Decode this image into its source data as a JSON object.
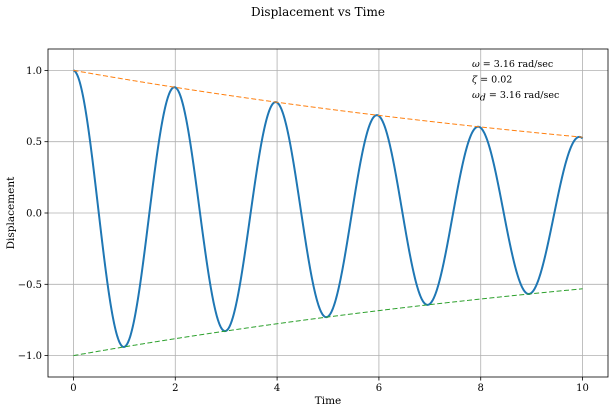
{
  "chart_data": {
    "type": "line",
    "title": "Displacement vs Time",
    "xlabel": "Time",
    "ylabel": "Displacement",
    "xlim": [
      -0.5,
      10.5
    ],
    "ylim": [
      -1.15,
      1.15
    ],
    "xticks": [
      0,
      2,
      4,
      6,
      8,
      10
    ],
    "xtick_labels": [
      "0",
      "2",
      "4",
      "6",
      "8",
      "10"
    ],
    "yticks": [
      -1.0,
      -0.5,
      0.0,
      0.5,
      1.0
    ],
    "ytick_labels": [
      "−1.0",
      "−0.5",
      "0.0",
      "0.5",
      "1.0"
    ],
    "grid": true,
    "parameters": {
      "omega": 3.16,
      "zeta": 0.02,
      "omega_d": 3.16,
      "t_start": 0,
      "t_end": 10,
      "amplitude": 1.0
    },
    "series": [
      {
        "kind": "displacement",
        "color": "#1f77b4",
        "style": "solid",
        "width": 2.0
      },
      {
        "kind": "upper_envelope",
        "color": "#ff7f0e",
        "style": "dashed",
        "width": 1.0
      },
      {
        "kind": "lower_envelope",
        "color": "#2ca02c",
        "style": "dashed",
        "width": 1.0
      }
    ],
    "annotations": [
      {
        "symbol": "ω",
        "sub": "",
        "text": " = 3.16 rad/sec"
      },
      {
        "symbol": "ζ",
        "sub": "",
        "text": " = 0.02"
      },
      {
        "symbol": "ω",
        "sub": "d",
        "text": " = 3.16 rad/sec"
      }
    ]
  }
}
